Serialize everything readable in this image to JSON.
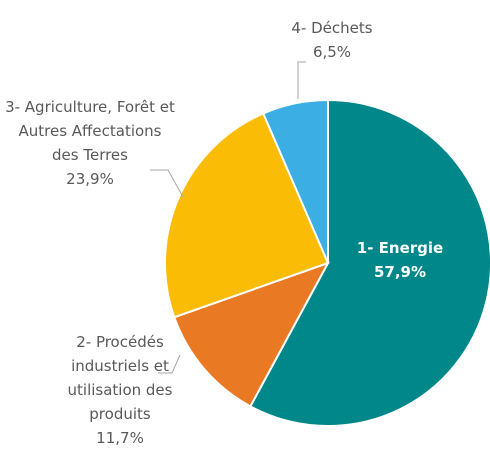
{
  "chart_data": {
    "type": "pie",
    "categories": [
      "1- Energie",
      "2- Procédés industriels et utilisation des produits",
      "3- Agriculture, Forêt et Autres Affectations des Terres",
      "4- Déchets"
    ],
    "values": [
      57.9,
      11.7,
      23.9,
      6.5
    ],
    "value_labels": [
      "57,9%",
      "11,7%",
      "23,9%",
      "6,5%"
    ],
    "colors": [
      "#00878a",
      "#ea7924",
      "#fbbc05",
      "#3baee3"
    ]
  }
}
